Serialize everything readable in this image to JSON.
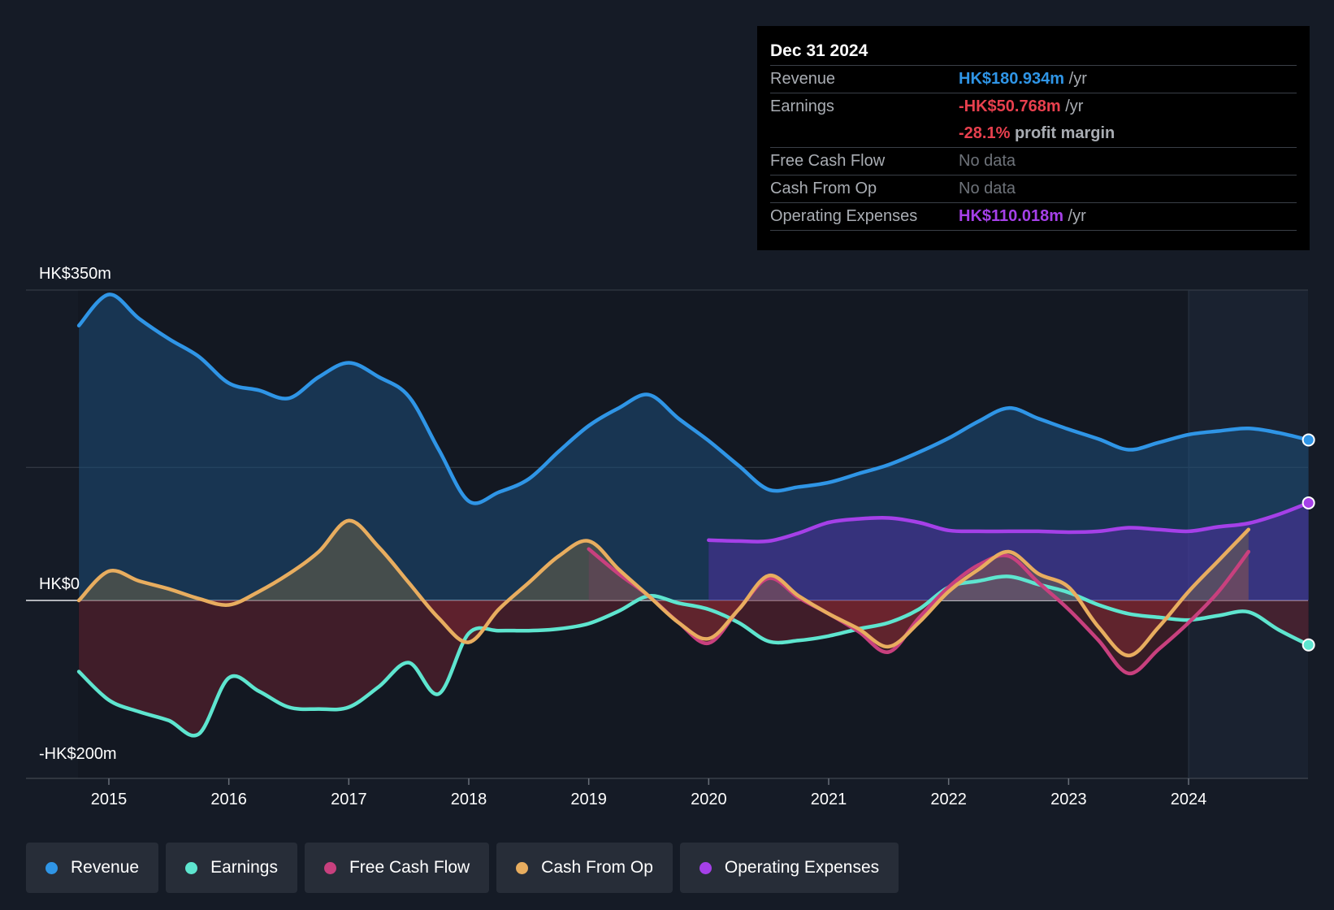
{
  "chart_data": {
    "type": "area",
    "title": "",
    "x_tick_labels": [
      "2015",
      "2016",
      "2017",
      "2018",
      "2019",
      "2020",
      "2021",
      "2022",
      "2023",
      "2024"
    ],
    "y_tick_labels": [
      "HK$350m",
      "HK$0",
      "-HK$200m"
    ],
    "ylim": [
      -200,
      350
    ],
    "xlim": [
      2014.75,
      2025.0
    ],
    "series": [
      {
        "name": "Revenue",
        "color": "#2f95e6",
        "points": [
          [
            2014.75,
            310
          ],
          [
            2015.0,
            345
          ],
          [
            2015.25,
            318
          ],
          [
            2015.5,
            295
          ],
          [
            2015.75,
            275
          ],
          [
            2016.0,
            245
          ],
          [
            2016.25,
            237
          ],
          [
            2016.5,
            228
          ],
          [
            2016.75,
            252
          ],
          [
            2017.0,
            268
          ],
          [
            2017.25,
            252
          ],
          [
            2017.5,
            230
          ],
          [
            2017.75,
            170
          ],
          [
            2018.0,
            112
          ],
          [
            2018.25,
            122
          ],
          [
            2018.5,
            137
          ],
          [
            2018.75,
            168
          ],
          [
            2019.0,
            197
          ],
          [
            2019.25,
            217
          ],
          [
            2019.5,
            232
          ],
          [
            2019.75,
            205
          ],
          [
            2020.0,
            180
          ],
          [
            2020.25,
            152
          ],
          [
            2020.5,
            125
          ],
          [
            2020.75,
            128
          ],
          [
            2021.0,
            133
          ],
          [
            2021.25,
            143
          ],
          [
            2021.5,
            153
          ],
          [
            2021.75,
            167
          ],
          [
            2022.0,
            183
          ],
          [
            2022.25,
            202
          ],
          [
            2022.5,
            217
          ],
          [
            2022.75,
            205
          ],
          [
            2023.0,
            193
          ],
          [
            2023.25,
            182
          ],
          [
            2023.5,
            170
          ],
          [
            2023.75,
            178
          ],
          [
            2024.0,
            187
          ],
          [
            2024.25,
            191
          ],
          [
            2024.5,
            194
          ],
          [
            2024.75,
            189
          ],
          [
            2025.0,
            181
          ]
        ]
      },
      {
        "name": "Earnings",
        "color": "#5ee5cf",
        "points": [
          [
            2014.75,
            -80
          ],
          [
            2015.0,
            -112
          ],
          [
            2015.25,
            -125
          ],
          [
            2015.5,
            -135
          ],
          [
            2015.75,
            -150
          ],
          [
            2016.0,
            -87
          ],
          [
            2016.25,
            -102
          ],
          [
            2016.5,
            -120
          ],
          [
            2016.75,
            -122
          ],
          [
            2017.0,
            -120
          ],
          [
            2017.25,
            -97
          ],
          [
            2017.5,
            -70
          ],
          [
            2017.75,
            -105
          ],
          [
            2018.0,
            -37
          ],
          [
            2018.25,
            -34
          ],
          [
            2018.5,
            -34
          ],
          [
            2018.75,
            -32
          ],
          [
            2019.0,
            -26
          ],
          [
            2019.25,
            -12
          ],
          [
            2019.5,
            5
          ],
          [
            2019.75,
            -3
          ],
          [
            2020.0,
            -10
          ],
          [
            2020.25,
            -25
          ],
          [
            2020.5,
            -46
          ],
          [
            2020.75,
            -45
          ],
          [
            2021.0,
            -40
          ],
          [
            2021.25,
            -32
          ],
          [
            2021.5,
            -25
          ],
          [
            2021.75,
            -10
          ],
          [
            2022.0,
            15
          ],
          [
            2022.25,
            22
          ],
          [
            2022.5,
            27
          ],
          [
            2022.75,
            18
          ],
          [
            2023.0,
            9
          ],
          [
            2023.25,
            -5
          ],
          [
            2023.5,
            -15
          ],
          [
            2023.75,
            -19
          ],
          [
            2024.0,
            -22
          ],
          [
            2024.25,
            -17
          ],
          [
            2024.5,
            -13
          ],
          [
            2024.75,
            -33
          ],
          [
            2025.0,
            -50
          ]
        ]
      },
      {
        "name": "Free Cash Flow",
        "color": "#c8407e",
        "points": [
          [
            2019.0,
            58
          ],
          [
            2019.25,
            30
          ],
          [
            2019.5,
            5
          ],
          [
            2019.75,
            -25
          ],
          [
            2020.0,
            -48
          ],
          [
            2020.25,
            -10
          ],
          [
            2020.5,
            25
          ],
          [
            2020.75,
            3
          ],
          [
            2021.0,
            -15
          ],
          [
            2021.25,
            -35
          ],
          [
            2021.5,
            -58
          ],
          [
            2021.75,
            -20
          ],
          [
            2022.0,
            15
          ],
          [
            2022.25,
            40
          ],
          [
            2022.5,
            50
          ],
          [
            2022.75,
            20
          ],
          [
            2023.0,
            -10
          ],
          [
            2023.25,
            -45
          ],
          [
            2023.5,
            -82
          ],
          [
            2023.75,
            -55
          ],
          [
            2024.0,
            -25
          ],
          [
            2024.25,
            10
          ],
          [
            2024.5,
            55
          ]
        ]
      },
      {
        "name": "Cash From Op",
        "color": "#e8ad5f",
        "points": [
          [
            2014.75,
            0
          ],
          [
            2015.0,
            33
          ],
          [
            2015.25,
            22
          ],
          [
            2015.5,
            13
          ],
          [
            2015.75,
            2
          ],
          [
            2016.0,
            -5
          ],
          [
            2016.25,
            10
          ],
          [
            2016.5,
            30
          ],
          [
            2016.75,
            55
          ],
          [
            2017.0,
            90
          ],
          [
            2017.25,
            60
          ],
          [
            2017.5,
            20
          ],
          [
            2017.75,
            -20
          ],
          [
            2018.0,
            -47
          ],
          [
            2018.25,
            -10
          ],
          [
            2018.5,
            20
          ],
          [
            2018.75,
            50
          ],
          [
            2019.0,
            67
          ],
          [
            2019.25,
            35
          ],
          [
            2019.5,
            5
          ],
          [
            2019.75,
            -25
          ],
          [
            2020.0,
            -43
          ],
          [
            2020.25,
            -10
          ],
          [
            2020.5,
            28
          ],
          [
            2020.75,
            5
          ],
          [
            2021.0,
            -15
          ],
          [
            2021.25,
            -32
          ],
          [
            2021.5,
            -52
          ],
          [
            2021.75,
            -25
          ],
          [
            2022.0,
            10
          ],
          [
            2022.25,
            35
          ],
          [
            2022.5,
            55
          ],
          [
            2022.75,
            30
          ],
          [
            2023.0,
            15
          ],
          [
            2023.25,
            -30
          ],
          [
            2023.5,
            -62
          ],
          [
            2023.75,
            -30
          ],
          [
            2024.0,
            10
          ],
          [
            2024.25,
            45
          ],
          [
            2024.5,
            80
          ]
        ]
      },
      {
        "name": "Operating Expenses",
        "color": "#a540e8",
        "points": [
          [
            2020.0,
            68
          ],
          [
            2020.25,
            67
          ],
          [
            2020.5,
            67
          ],
          [
            2020.75,
            76
          ],
          [
            2021.0,
            88
          ],
          [
            2021.25,
            92
          ],
          [
            2021.5,
            93
          ],
          [
            2021.75,
            88
          ],
          [
            2022.0,
            79
          ],
          [
            2022.25,
            78
          ],
          [
            2022.5,
            78
          ],
          [
            2022.75,
            78
          ],
          [
            2023.0,
            77
          ],
          [
            2023.25,
            78
          ],
          [
            2023.5,
            82
          ],
          [
            2023.75,
            80
          ],
          [
            2024.0,
            78
          ],
          [
            2024.25,
            83
          ],
          [
            2024.5,
            87
          ],
          [
            2024.75,
            97
          ],
          [
            2025.0,
            110
          ]
        ]
      }
    ]
  },
  "tooltip": {
    "date": "Dec 31 2024",
    "revenue_label": "Revenue",
    "revenue_value": "HK$180.934m",
    "revenue_unit": "/yr",
    "earnings_label": "Earnings",
    "earnings_value": "-HK$50.768m",
    "earnings_unit": "/yr",
    "margin_value": "-28.1%",
    "margin_label": "profit margin",
    "fcf_label": "Free Cash Flow",
    "fcf_value": "No data",
    "cfo_label": "Cash From Op",
    "cfo_value": "No data",
    "opex_label": "Operating Expenses",
    "opex_value": "HK$110.018m",
    "opex_unit": "/yr"
  },
  "legend": [
    {
      "label": "Revenue",
      "color": "#2f95e6"
    },
    {
      "label": "Earnings",
      "color": "#5ee5cf"
    },
    {
      "label": "Free Cash Flow",
      "color": "#c8407e"
    },
    {
      "label": "Cash From Op",
      "color": "#e8ad5f"
    },
    {
      "label": "Operating Expenses",
      "color": "#a540e8"
    }
  ],
  "colors": {
    "revenue": "#2f95e6",
    "earnings_negative": "#e8404e",
    "opex": "#a540e8",
    "muted": "#a9adb3"
  }
}
